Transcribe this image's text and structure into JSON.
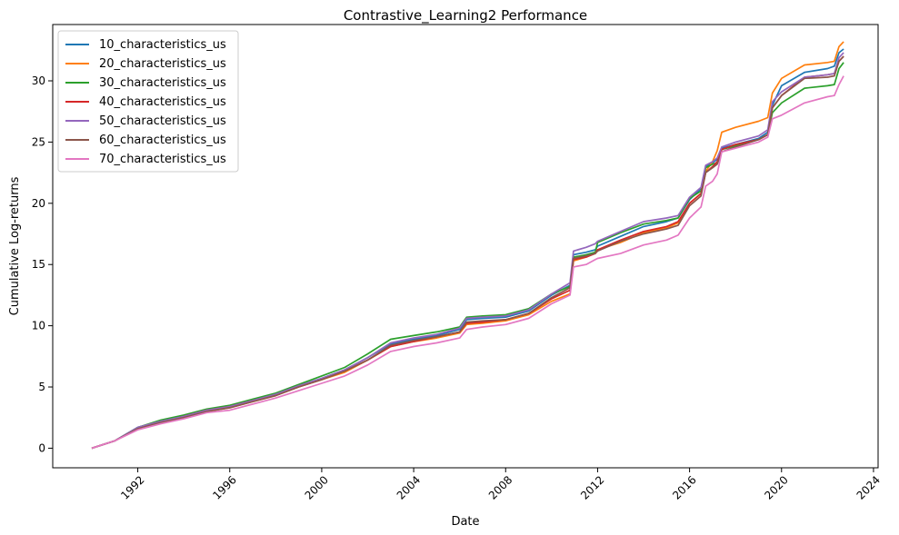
{
  "chart_data": {
    "type": "line",
    "title": "Contrastive_Learning2 Performance",
    "xlabel": "Date",
    "ylabel": "Cumulative Log-returns",
    "xlim": [
      1988.3,
      2024.2
    ],
    "ylim": [
      -1.6,
      34.6
    ],
    "x_ticks": [
      "1992",
      "1996",
      "2000",
      "2004",
      "2008",
      "2012",
      "2016",
      "2020",
      "2024"
    ],
    "y_ticks": [
      "0",
      "5",
      "10",
      "15",
      "20",
      "25",
      "30"
    ],
    "legend_position": "top-left",
    "x_points": [
      1990.0,
      1991.0,
      1992.0,
      1993.0,
      1994.0,
      1995.0,
      1996.0,
      1997.0,
      1998.0,
      1999.0,
      2000.0,
      2001.0,
      2002.0,
      2003.0,
      2004.0,
      2005.0,
      2006.0,
      2006.3,
      2007.0,
      2008.0,
      2009.0,
      2010.0,
      2010.8,
      2010.95,
      2011.5,
      2011.9,
      2012.0,
      2013.0,
      2014.0,
      2015.0,
      2015.5,
      2016.0,
      2016.5,
      2016.7,
      2017.0,
      2017.2,
      2017.4,
      2018.0,
      2019.0,
      2019.4,
      2019.6,
      2020.0,
      2021.0,
      2022.0,
      2022.3,
      2022.5,
      2022.7
    ],
    "series": [
      {
        "name": "10_characteristics_us",
        "color": "#1f77b4",
        "values": [
          0.0,
          0.6,
          1.7,
          2.2,
          2.6,
          3.1,
          3.4,
          3.9,
          4.4,
          5.1,
          5.7,
          6.4,
          7.4,
          8.5,
          8.9,
          9.2,
          9.7,
          10.5,
          10.6,
          10.7,
          11.2,
          12.5,
          13.3,
          15.8,
          16.0,
          16.2,
          16.5,
          17.3,
          18.1,
          18.5,
          18.8,
          20.3,
          21.2,
          23.0,
          23.3,
          23.6,
          24.5,
          24.8,
          25.3,
          25.8,
          28.0,
          29.6,
          30.7,
          31.0,
          31.2,
          32.3,
          32.6
        ]
      },
      {
        "name": "20_characteristics_us",
        "color": "#ff7f0e",
        "values": [
          0.0,
          0.6,
          1.6,
          2.1,
          2.5,
          3.0,
          3.3,
          3.8,
          4.3,
          5.0,
          5.6,
          6.2,
          7.2,
          8.3,
          8.7,
          9.0,
          9.4,
          10.1,
          10.2,
          10.4,
          10.9,
          12.0,
          12.6,
          15.3,
          15.6,
          16.0,
          16.2,
          16.8,
          17.6,
          18.0,
          18.4,
          20.0,
          20.8,
          22.6,
          23.4,
          24.3,
          25.8,
          26.2,
          26.7,
          27.0,
          29.0,
          30.2,
          31.3,
          31.5,
          31.6,
          32.8,
          33.2
        ]
      },
      {
        "name": "30_characteristics_us",
        "color": "#2ca02c",
        "values": [
          0.0,
          0.6,
          1.7,
          2.3,
          2.7,
          3.2,
          3.5,
          4.0,
          4.5,
          5.2,
          5.9,
          6.6,
          7.7,
          8.9,
          9.2,
          9.5,
          9.9,
          10.7,
          10.8,
          10.9,
          11.4,
          12.6,
          13.2,
          15.6,
          15.8,
          16.0,
          16.8,
          17.6,
          18.3,
          18.6,
          18.8,
          20.4,
          21.0,
          22.9,
          23.2,
          23.3,
          24.4,
          24.7,
          25.2,
          25.6,
          27.4,
          28.2,
          29.4,
          29.6,
          29.7,
          31.0,
          31.5
        ]
      },
      {
        "name": "40_characteristics_us",
        "color": "#d62728",
        "values": [
          0.0,
          0.6,
          1.6,
          2.1,
          2.6,
          3.1,
          3.4,
          3.9,
          4.3,
          5.0,
          5.6,
          6.3,
          7.2,
          8.3,
          8.7,
          9.1,
          9.5,
          10.2,
          10.3,
          10.5,
          11.0,
          12.2,
          12.9,
          15.4,
          15.6,
          15.9,
          16.2,
          17.0,
          17.7,
          18.1,
          18.5,
          20.0,
          20.8,
          22.5,
          23.0,
          23.4,
          24.4,
          24.8,
          25.2,
          25.6,
          27.8,
          28.8,
          30.3,
          30.5,
          30.6,
          31.6,
          32.0
        ]
      },
      {
        "name": "50_characteristics_us",
        "color": "#9467bd",
        "values": [
          0.0,
          0.6,
          1.7,
          2.2,
          2.6,
          3.1,
          3.4,
          3.9,
          4.4,
          5.1,
          5.7,
          6.4,
          7.4,
          8.6,
          9.0,
          9.3,
          9.8,
          10.6,
          10.7,
          10.8,
          11.3,
          12.6,
          13.5,
          16.1,
          16.4,
          16.7,
          16.9,
          17.7,
          18.5,
          18.8,
          19.0,
          20.5,
          21.3,
          23.1,
          23.4,
          23.7,
          24.6,
          25.0,
          25.5,
          26.0,
          28.3,
          29.1,
          30.3,
          30.5,
          30.6,
          31.9,
          32.3
        ]
      },
      {
        "name": "60_characteristics_us",
        "color": "#8c564b",
        "values": [
          0.0,
          0.6,
          1.6,
          2.1,
          2.5,
          3.0,
          3.3,
          3.8,
          4.3,
          5.0,
          5.6,
          6.3,
          7.2,
          8.4,
          8.8,
          9.1,
          9.5,
          10.3,
          10.4,
          10.5,
          11.0,
          12.3,
          13.1,
          15.5,
          15.7,
          15.9,
          16.1,
          16.9,
          17.5,
          17.9,
          18.2,
          19.8,
          20.6,
          22.5,
          22.9,
          23.2,
          24.2,
          24.6,
          25.2,
          25.6,
          27.8,
          28.8,
          30.2,
          30.3,
          30.4,
          31.6,
          32.0
        ]
      },
      {
        "name": "70_characteristics_us",
        "color": "#e377c2",
        "values": [
          0.0,
          0.6,
          1.5,
          2.0,
          2.4,
          2.9,
          3.1,
          3.6,
          4.1,
          4.7,
          5.3,
          5.9,
          6.8,
          7.9,
          8.3,
          8.6,
          9.0,
          9.7,
          9.9,
          10.1,
          10.6,
          11.8,
          12.5,
          14.8,
          15.0,
          15.4,
          15.5,
          15.9,
          16.6,
          17.0,
          17.4,
          18.8,
          19.7,
          21.4,
          21.8,
          22.4,
          24.2,
          24.5,
          25.0,
          25.4,
          26.9,
          27.2,
          28.2,
          28.7,
          28.8,
          29.7,
          30.4
        ]
      }
    ]
  }
}
